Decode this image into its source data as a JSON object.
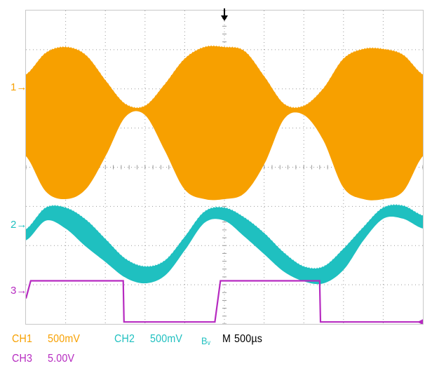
{
  "title": "",
  "colors": {
    "ch1": "#F7A000",
    "ch2": "#1FC0C0",
    "ch3": "#B62AC0",
    "grid": "#9a9a9a",
    "border": "#c8c8c8",
    "timebase": "#000000"
  },
  "channel_markers": {
    "ch1": "1→",
    "ch2": "2→",
    "ch3": "3→"
  },
  "trigger_marker": "↓",
  "readouts": {
    "ch1_label": "CH1",
    "ch1_scale": "500mV",
    "ch2_label": "CH2",
    "ch2_scale": "500mV",
    "ch2_bw": "Bᵥ",
    "timebase_prefix": "M",
    "timebase_value": "500µs",
    "ch3_label": "CH3",
    "ch3_scale": "5.00V"
  },
  "chart_data": {
    "type": "line",
    "title": "",
    "xlabel": "",
    "ylabel": "",
    "grid": true,
    "x_unit": "divisions",
    "y_unit": "divisions",
    "xlim": [
      0,
      10
    ],
    "ylim": [
      -4,
      4
    ],
    "series": [
      {
        "name": "CH1",
        "kind": "modulated_envelope",
        "carrier_visible_as_fill": true,
        "x": [
          0.0,
          0.5,
          1.0,
          1.5,
          2.0,
          2.5,
          3.0,
          3.5,
          4.0,
          4.5,
          5.0,
          5.5,
          6.0,
          6.5,
          7.0,
          7.5,
          8.0,
          8.5,
          9.0,
          9.5,
          10.0
        ],
        "upper": [
          2.35,
          2.9,
          3.05,
          2.85,
          2.2,
          1.6,
          1.55,
          2.1,
          2.75,
          3.05,
          3.05,
          2.95,
          2.3,
          1.6,
          1.55,
          2.0,
          2.75,
          3.0,
          3.0,
          2.85,
          2.35
        ],
        "lower": [
          0.3,
          -0.6,
          -0.8,
          -0.55,
          0.3,
          1.3,
          1.35,
          0.45,
          -0.55,
          -0.8,
          -0.8,
          -0.65,
          0.1,
          1.25,
          1.35,
          0.7,
          -0.5,
          -0.8,
          -0.8,
          -0.6,
          0.3
        ]
      },
      {
        "name": "CH2",
        "kind": "band",
        "x": [
          0.0,
          0.5,
          1.0,
          1.5,
          2.0,
          2.5,
          3.0,
          3.5,
          4.0,
          4.5,
          5.0,
          5.5,
          6.0,
          6.5,
          7.0,
          7.5,
          8.0,
          8.5,
          9.0,
          9.5,
          10.0
        ],
        "upper": [
          -1.6,
          -1.05,
          -1.05,
          -1.35,
          -1.85,
          -2.35,
          -2.55,
          -2.4,
          -1.8,
          -1.15,
          -1.05,
          -1.3,
          -1.7,
          -2.2,
          -2.55,
          -2.55,
          -2.1,
          -1.55,
          -1.05,
          -1.0,
          -1.25
        ],
        "lower": [
          -1.85,
          -1.35,
          -1.55,
          -2.0,
          -2.4,
          -2.8,
          -2.95,
          -2.75,
          -2.1,
          -1.4,
          -1.35,
          -1.75,
          -2.2,
          -2.65,
          -2.9,
          -2.95,
          -2.6,
          -1.85,
          -1.3,
          -1.3,
          -1.55
        ]
      },
      {
        "name": "CH3",
        "kind": "square",
        "x": [
          0.0,
          0.12,
          2.45,
          2.47,
          4.76,
          4.9,
          7.4,
          7.42,
          10.0
        ],
        "y": [
          -3.35,
          -2.9,
          -2.9,
          -3.95,
          -3.95,
          -2.9,
          -2.9,
          -3.95,
          -3.95
        ]
      }
    ]
  }
}
